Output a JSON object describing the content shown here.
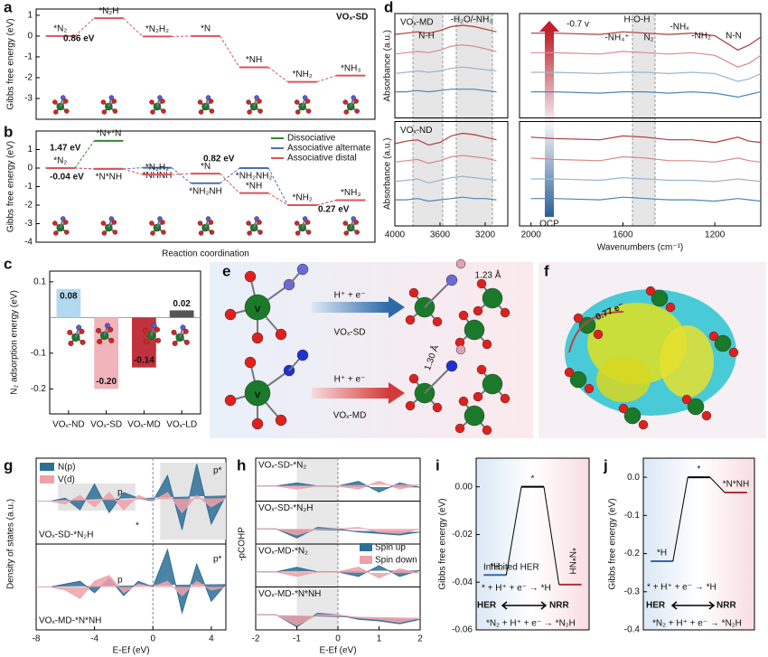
{
  "chart_data": [
    {
      "type": "energy_diagram",
      "panel": "a",
      "tag": "VOₓ-SD",
      "y_label": "Gibbs free energy (eV)",
      "ylim": [
        -4,
        1.3
      ],
      "yticks": [
        -3,
        -2,
        -1,
        0,
        1
      ],
      "series": [
        {
          "color": "#d9545c",
          "values": [
            0,
            0.86,
            -0.02,
            0,
            -1.5,
            -2.2,
            -1.9
          ],
          "labels": [
            "*N₂",
            "*N₂H",
            "*N₂H₂",
            "*N",
            "*NH",
            "*NH₂",
            "*NH₃"
          ]
        }
      ],
      "annotations": [
        "0.86 eV"
      ]
    },
    {
      "type": "energy_diagram",
      "panel": "b",
      "y_label": "Gibbs free energy (eV)",
      "x_label": "Reaction coordination",
      "ylim": [
        -4,
        2
      ],
      "yticks": [
        -4,
        -3,
        -2,
        -1,
        0,
        1
      ],
      "series": [
        {
          "name": "Dissociative",
          "color": "#2e8b2e",
          "values": [
            0,
            1.47
          ],
          "labels": [
            null,
            "*N+*N"
          ]
        },
        {
          "name": "Associative alternate",
          "color": "#4a6fb5",
          "values": [
            0,
            -0.04,
            0.02,
            -0.82,
            0.0,
            -2.0,
            -1.73
          ],
          "labels": [
            null,
            "*N*NH",
            "*NHNH",
            "*NH₂NH",
            "*NH₂NH₂",
            null,
            null
          ]
        },
        {
          "name": "Associative distal",
          "color": "#d9545c",
          "values": [
            0,
            -0.04,
            -0.35,
            -0.3,
            -1.35,
            -2.0,
            -1.73
          ],
          "labels": [
            "*N₂",
            null,
            "*N₂H₂",
            "*N",
            "*NH",
            "*NH₂",
            "*NH₃"
          ]
        }
      ],
      "annotations": [
        "-0.04 eV",
        "1.47 eV",
        "0.82 eV",
        "0.27 eV"
      ]
    },
    {
      "type": "bar",
      "panel": "c",
      "y_label": "N₂ adsorption energy (eV)",
      "categories": [
        "VOₓ-ND",
        "VOₓ-SD",
        "VOₓ-MD",
        "VOₓ-LD"
      ],
      "values": [
        0.08,
        -0.2,
        -0.14,
        0.02
      ],
      "value_labels": [
        "0.08",
        "-0.20",
        "-0.14",
        "0.02"
      ],
      "colors": [
        "#b3d9f0",
        "#f0b4ba",
        "#c0323c",
        "#555555"
      ],
      "ylim": [
        -0.27,
        0.13
      ],
      "yticks": [
        -0.2,
        -0.1,
        0.1
      ]
    },
    {
      "type": "spectra",
      "panel": "d",
      "x": [
        4000,
        3900,
        3800,
        3700,
        3600,
        3500,
        3400,
        3300,
        3200,
        3100,
        2000,
        1900,
        1700,
        1600,
        1500,
        1400,
        1300,
        1200,
        1100,
        1050,
        1000
      ],
      "xlim": [
        4000,
        1000
      ],
      "xbreak": [
        3000,
        2050
      ],
      "xticks": [
        4000,
        3600,
        3200,
        2000,
        1600,
        1200
      ],
      "x_label": "Wavenumbers (cm⁻¹)",
      "ylim": [
        2,
        10
      ],
      "groups": [
        {
          "label": "VOₓ-MD",
          "y_label": "Absorbance (a.u.)",
          "series": [
            {
              "color": "#b03a3e",
              "values": [
                8.4,
                8.5,
                8.6,
                8.5,
                8.7,
                9.0,
                9.1,
                9.0,
                8.8,
                8.6,
                8.5,
                8.5,
                8.4,
                8.6,
                8.5,
                8.4,
                8.5,
                8.3,
                7.2,
                7.6,
                8.2
              ]
            },
            {
              "color": "#d98a8a",
              "values": [
                6.9,
                7.0,
                7.1,
                7.0,
                7.2,
                7.5,
                7.6,
                7.5,
                7.3,
                7.1,
                7.0,
                7.0,
                6.9,
                7.1,
                7.0,
                6.9,
                7.0,
                6.8,
                5.9,
                6.2,
                6.8
              ]
            },
            {
              "color": "#9bb6cf",
              "values": [
                5.4,
                5.5,
                5.6,
                5.5,
                5.6,
                5.8,
                5.9,
                5.8,
                5.7,
                5.6,
                5.5,
                5.5,
                5.4,
                5.5,
                5.5,
                5.4,
                5.5,
                5.4,
                4.8,
                5.0,
                5.4
              ]
            },
            {
              "color": "#4f86b5",
              "values": [
                4.0,
                4.0,
                4.1,
                4.0,
                4.1,
                4.2,
                4.2,
                4.2,
                4.1,
                4.0,
                4.0,
                4.0,
                3.9,
                4.0,
                4.0,
                3.9,
                4.0,
                3.9,
                3.6,
                3.8,
                4.0
              ]
            }
          ]
        },
        {
          "label": "VOₓ-ND",
          "y_label": "Absorbance (a.u.)",
          "series": [
            {
              "color": "#b03a3e",
              "values": [
                8.3,
                8.5,
                8.6,
                8.2,
                8.4,
                8.9,
                9.1,
                9.0,
                8.8,
                8.6,
                8.8,
                8.7,
                8.6,
                8.9,
                8.8,
                8.6,
                8.6,
                8.4,
                8.8,
                8.5,
                8.4
              ]
            },
            {
              "color": "#d98a8a",
              "values": [
                6.9,
                7.0,
                7.1,
                6.8,
                7.0,
                7.3,
                7.4,
                7.3,
                7.2,
                7.0,
                7.2,
                7.1,
                7.0,
                7.3,
                7.2,
                7.0,
                7.0,
                6.9,
                7.2,
                7.0,
                6.9
              ]
            },
            {
              "color": "#9bb6cf",
              "values": [
                5.4,
                5.5,
                5.6,
                5.3,
                5.5,
                5.7,
                5.8,
                5.7,
                5.6,
                5.5,
                5.6,
                5.6,
                5.5,
                5.7,
                5.6,
                5.5,
                5.5,
                5.4,
                5.6,
                5.5,
                5.4
              ]
            },
            {
              "color": "#4f86b5",
              "values": [
                4.0,
                4.0,
                4.1,
                3.9,
                4.0,
                4.1,
                4.2,
                4.1,
                4.1,
                4.0,
                4.1,
                4.1,
                4.0,
                4.2,
                4.1,
                4.0,
                4.0,
                3.9,
                4.1,
                4.0,
                3.9
              ]
            }
          ]
        }
      ],
      "potential_labels": [
        "-0.7 v",
        "OCP"
      ],
      "annotations": [
        "N-H",
        "-H₂O/-NH₃",
        "H-O-H",
        "-NH₄⁺",
        "N₂",
        "-NHₓ",
        "-NH₂",
        "N-N"
      ]
    },
    {
      "type": "diagram",
      "panel": "e",
      "labels": [
        "H⁺ + e⁻",
        "VOₓ-SD",
        "1.23 Å",
        "H⁺ + e⁻",
        "VOₓ-MD",
        "1.30 Å",
        "V",
        "V"
      ]
    },
    {
      "type": "diagram",
      "panel": "f",
      "labels": [
        "0.77 e⁻"
      ]
    },
    {
      "type": "dos",
      "panel": "g",
      "x_label": "E-Ef (eV)",
      "y_label": "Density of states (a.u.)",
      "x": [
        -8,
        -7,
        -6,
        -5,
        -4,
        -3,
        -2,
        -1,
        0,
        1,
        2,
        3,
        4,
        5
      ],
      "xlim": [
        -8,
        5
      ],
      "xticks": [
        -8,
        -4,
        0,
        4
      ],
      "ylim": [
        -1.5,
        1.5
      ],
      "series": [
        {
          "name": "N(p)",
          "color": "#2e6f96"
        },
        {
          "name": "V(d)",
          "color": "#f0a0a8"
        }
      ],
      "plots": [
        {
          "label": "VOₓ-SD-*N₂H",
          "annotations": [
            "p",
            "p*",
            "*"
          ],
          "values": [
            [
              0,
              0,
              0.1,
              -0.3,
              0.6,
              -0.4,
              0.3,
              0.1,
              0,
              0.9,
              -1.0,
              1.3,
              -0.8,
              0.2
            ],
            [
              0,
              0,
              -0.1,
              0.2,
              -0.2,
              0.3,
              -0.3,
              0.2,
              0,
              0.3,
              -0.4,
              0.2,
              -0.2,
              0.1
            ]
          ]
        },
        {
          "label": "VOₓ-MD-*N*NH",
          "annotations": [
            "p",
            "p*"
          ],
          "values": [
            [
              0,
              0,
              0.1,
              0.2,
              -0.2,
              0.3,
              -0.3,
              0.2,
              0,
              1.3,
              -0.9,
              0.8,
              -0.5,
              0.1
            ],
            [
              0,
              0,
              -0.1,
              -0.4,
              0.2,
              0.4,
              -0.2,
              0.1,
              0,
              0.2,
              -0.3,
              0.2,
              -0.1,
              0
            ]
          ]
        }
      ]
    },
    {
      "type": "cohp",
      "panel": "h",
      "x_label": "E-Ef (eV)",
      "y_label": "-pCOHP",
      "x": [
        -2,
        -1.5,
        -1,
        -0.5,
        0,
        0.5,
        1,
        1.5,
        2
      ],
      "xlim": [
        -2,
        2
      ],
      "xticks": [
        -2,
        -1,
        0,
        1,
        2
      ],
      "ylim": [
        -1,
        1
      ],
      "series": [
        {
          "name": "Spin up",
          "color": "#2e6f96"
        },
        {
          "name": "Spin down",
          "color": "#f0a0a8"
        }
      ],
      "rows": [
        {
          "label": "VOₓ-SD-*N₂",
          "values": [
            [
              0,
              0,
              0.2,
              0,
              0,
              0.3,
              -0.4,
              0.2,
              -0.1
            ],
            [
              0,
              0,
              -0.2,
              0,
              0,
              -0.2,
              0.3,
              -0.2,
              0.1
            ]
          ]
        },
        {
          "label": "VOₓ-SD-*N₂H",
          "values": [
            [
              0,
              0,
              -0.6,
              0.1,
              0,
              -0.2,
              -0.3,
              -0.4,
              -0.2
            ],
            [
              0,
              0,
              -0.4,
              0,
              0,
              0.1,
              -0.2,
              -0.3,
              0
            ]
          ]
        },
        {
          "label": "VOₓ-MD-*N₂",
          "values": [
            [
              0,
              0,
              0.3,
              0,
              0,
              -0.3,
              0.4,
              -0.3,
              0.1
            ],
            [
              0,
              0,
              -0.3,
              0,
              0,
              0.3,
              -0.4,
              0.2,
              -0.1
            ]
          ]
        },
        {
          "label": "VOₓ-MD-*N*NH",
          "values": [
            [
              0,
              0,
              -0.8,
              0.1,
              0,
              -0.3,
              -0.4,
              -0.6,
              -0.3
            ],
            [
              0,
              0,
              -0.7,
              0,
              0,
              -0.2,
              -0.3,
              -0.5,
              -0.2
            ]
          ]
        }
      ]
    },
    {
      "type": "energy_profile",
      "panel": "i",
      "y_label": "Gibbs free energy (eV)",
      "ylim": [
        -0.06,
        0.012
      ],
      "yticks": [
        {
          "value": -0.06,
          "label": "-0.06"
        },
        {
          "value": -0.04,
          "label": "-0.04"
        },
        {
          "value": -0.02,
          "label": "-0.02"
        },
        {
          "value": 0,
          "label": "0.00"
        }
      ],
      "values": [
        -0.037,
        0,
        -0.041
      ],
      "labels": [
        "*H",
        "*",
        "*N*NH"
      ],
      "texts": [
        "Inhibited HER",
        "* + H⁺ + e⁻ → *H",
        "HER",
        "NRR",
        "*N₂ + H⁺ + e⁻ → *N₂H"
      ]
    },
    {
      "type": "energy_profile",
      "panel": "j",
      "y_label": "Gibbs free energy (eV)",
      "ylim": [
        -0.4,
        0.05
      ],
      "yticks": [
        {
          "value": -0.4,
          "label": "-0.4"
        },
        {
          "value": -0.3,
          "label": "-0.3"
        },
        {
          "value": -0.2,
          "label": "-0.2"
        },
        {
          "value": -0.1,
          "label": "-0.1"
        },
        {
          "value": 0,
          "label": "0.0"
        }
      ],
      "values": [
        -0.22,
        0,
        -0.04
      ],
      "labels": [
        "*H",
        "*",
        "*N*NH"
      ],
      "texts": [
        "* + H⁺ + e⁻ → *H",
        "HER",
        "NRR",
        "*N₂ + H⁺ + e⁻ → *N₂H"
      ]
    }
  ]
}
